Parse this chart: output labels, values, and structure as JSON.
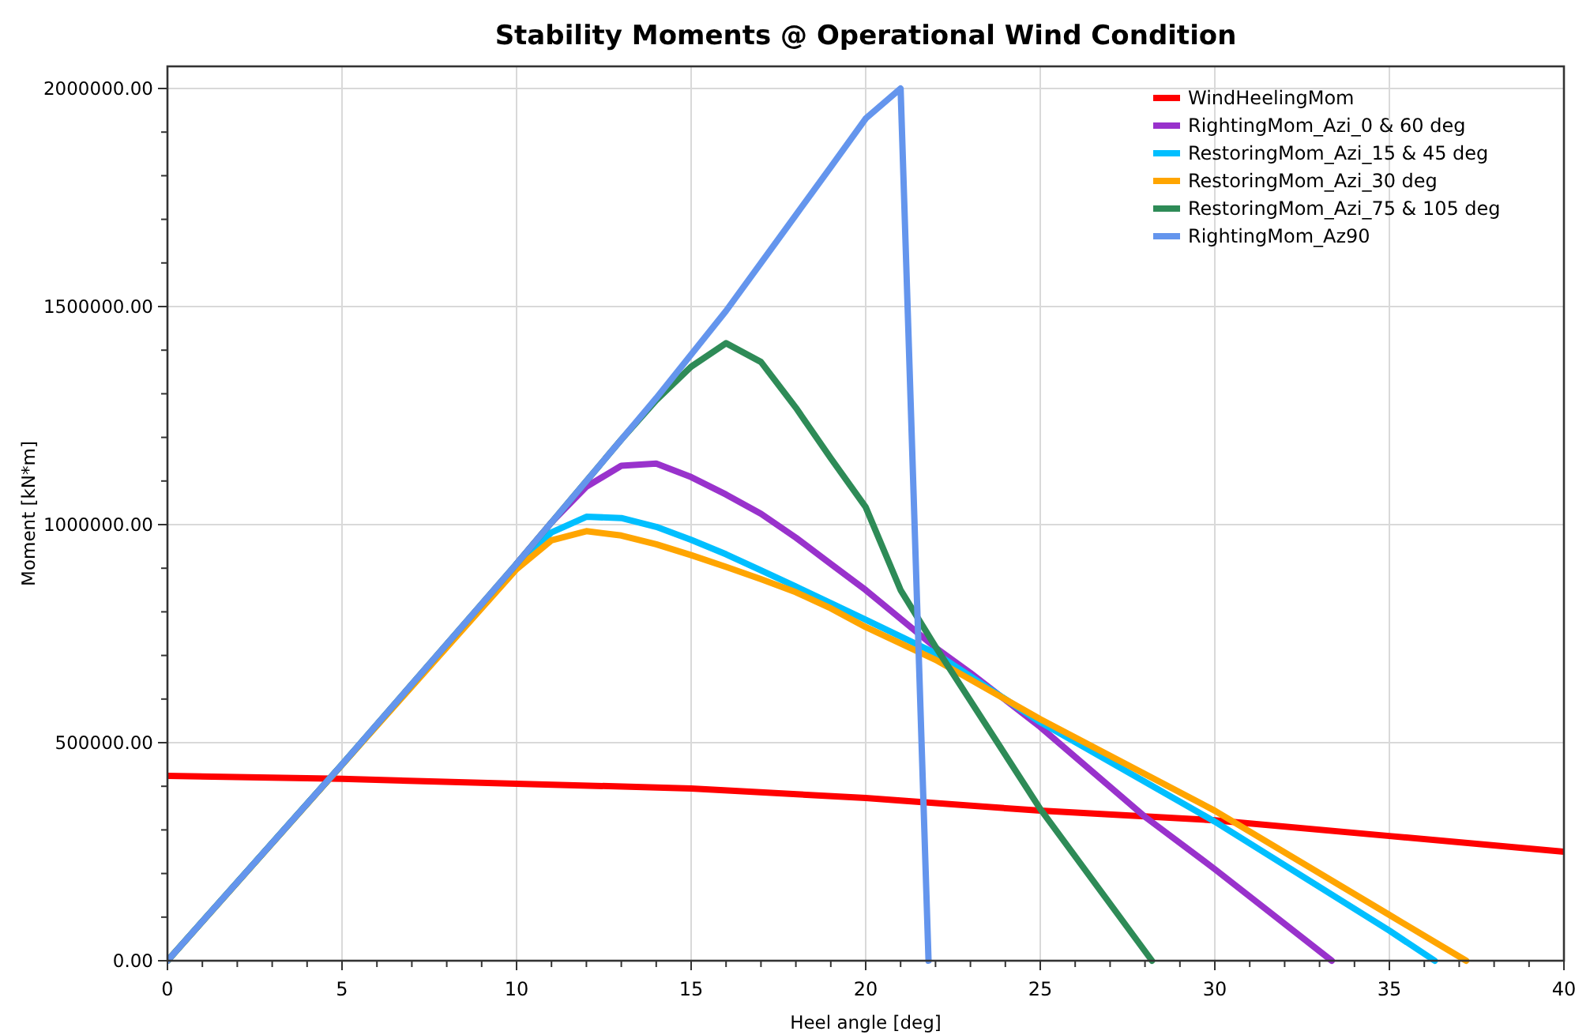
{
  "chart_data": {
    "type": "line",
    "title": "Stability Moments @ Operational Wind Condition",
    "xlabel": "Heel angle [deg]",
    "ylabel": "Moment [kN*m]",
    "xlim": [
      0,
      40
    ],
    "ylim": [
      0,
      2000000
    ],
    "xticks": [
      0,
      {
        "value": 1,
        "label": null
      },
      {
        "value": 2,
        "label": null
      },
      {
        "value": 3,
        "label": null
      },
      {
        "value": 4,
        "label": null
      },
      5,
      {
        "value": 6,
        "label": null
      },
      {
        "value": 7,
        "label": null
      },
      {
        "value": 8,
        "label": null
      },
      {
        "value": 9,
        "label": null
      },
      10,
      {
        "value": 11,
        "label": null
      },
      {
        "value": 12,
        "label": null
      },
      {
        "value": 13,
        "label": null
      },
      {
        "value": 14,
        "label": null
      },
      15,
      {
        "value": 16,
        "label": null
      },
      {
        "value": 17,
        "label": null
      },
      {
        "value": 18,
        "label": null
      },
      {
        "value": 19,
        "label": null
      },
      20,
      {
        "value": 21,
        "label": null
      },
      {
        "value": 22,
        "label": null
      },
      {
        "value": 23,
        "label": null
      },
      {
        "value": 24,
        "label": null
      },
      25,
      {
        "value": 26,
        "label": null
      },
      {
        "value": 27,
        "label": null
      },
      {
        "value": 28,
        "label": null
      },
      {
        "value": 29,
        "label": null
      },
      30,
      {
        "value": 31,
        "label": null
      },
      {
        "value": 32,
        "label": null
      },
      {
        "value": 33,
        "label": null
      },
      {
        "value": 34,
        "label": null
      },
      35,
      {
        "value": 36,
        "label": null
      },
      {
        "value": 37,
        "label": null
      },
      {
        "value": 38,
        "label": null
      },
      {
        "value": 39,
        "label": null
      },
      40
    ],
    "yticks": [
      {
        "value": 0,
        "label": "0.00"
      },
      {
        "value": 100000,
        "label": null
      },
      {
        "value": 200000,
        "label": null
      },
      {
        "value": 300000,
        "label": null
      },
      {
        "value": 400000,
        "label": null
      },
      {
        "value": 500000,
        "label": "500000.00"
      },
      {
        "value": 600000,
        "label": null
      },
      {
        "value": 700000,
        "label": null
      },
      {
        "value": 800000,
        "label": null
      },
      {
        "value": 900000,
        "label": null
      },
      {
        "value": 1000000,
        "label": "1000000.00"
      },
      {
        "value": 1100000,
        "label": null
      },
      {
        "value": 1200000,
        "label": null
      },
      {
        "value": 1300000,
        "label": null
      },
      {
        "value": 1400000,
        "label": null
      },
      {
        "value": 1500000,
        "label": "1500000.00"
      },
      {
        "value": 1600000,
        "label": null
      },
      {
        "value": 1700000,
        "label": null
      },
      {
        "value": 1800000,
        "label": null
      },
      {
        "value": 1900000,
        "label": null
      },
      {
        "value": 2000000,
        "label": "2000000.00"
      }
    ],
    "grid": true,
    "legend": "top right",
    "marker": "none",
    "line_style": "solid",
    "series": [
      {
        "name": "WindHeelingMom",
        "color": "#ff0000",
        "x": [
          0,
          5,
          10,
          15,
          20,
          25,
          30,
          35,
          40
        ],
        "values": [
          424000,
          417000,
          406000,
          395000,
          373000,
          344000,
          322000,
          286000,
          250000
        ]
      },
      {
        "name": "RightingMom_Azi_0 & 60 deg",
        "color": "#9932cc",
        "x": [
          10,
          11,
          12,
          13,
          14,
          15,
          16,
          17,
          18,
          19,
          20,
          22,
          23,
          25,
          28,
          30,
          33.35
        ],
        "values": [
          910000,
          1005000,
          1087000,
          1135000,
          1140000,
          1109000,
          1069000,
          1025000,
          970000,
          910000,
          850000,
          718000,
          660000,
          536000,
          330000,
          210000,
          0
        ]
      },
      {
        "name": "RestoringMom_Azi_15 & 45 deg",
        "color": "#00bfff",
        "x": [
          0,
          5,
          10,
          11,
          12,
          13,
          14,
          15,
          16,
          17,
          18,
          19,
          20,
          22,
          25,
          30,
          35,
          36.3
        ],
        "values": [
          0,
          450000,
          905000,
          982000,
          1018000,
          1015000,
          995000,
          965000,
          932000,
          895000,
          858000,
          820000,
          782000,
          705000,
          547000,
          319000,
          69000,
          0
        ]
      },
      {
        "name": "RestoringMom_Azi_30 deg",
        "color": "#ffa500",
        "x": [
          0,
          10,
          11,
          12,
          13,
          14,
          15,
          16,
          17,
          18,
          19,
          20,
          22,
          25,
          30,
          35,
          37.2
        ],
        "values": [
          0,
          898000,
          964000,
          985000,
          975000,
          955000,
          930000,
          903000,
          875000,
          845000,
          808000,
          765000,
          690000,
          554000,
          344000,
          105000,
          0
        ]
      },
      {
        "name": "RestoringMom_Azi_75 & 105 deg",
        "color": "#2e8b57",
        "x": [
          0,
          5,
          10,
          11,
          12,
          13,
          14,
          15,
          16,
          17,
          18,
          19,
          20,
          21,
          22,
          25,
          28.2
        ],
        "values": [
          0,
          450000,
          910000,
          1005000,
          1100000,
          1195000,
          1285000,
          1362000,
          1416000,
          1373000,
          1268000,
          1152000,
          1040000,
          850000,
          720000,
          348000,
          0
        ]
      },
      {
        "name": "RightingMom_Az90",
        "color": "#6495ed",
        "x": [
          0,
          5,
          10,
          11,
          12,
          13,
          14,
          15,
          16,
          17,
          18,
          19,
          20,
          21,
          21.8
        ],
        "values": [
          0,
          450000,
          910000,
          1005000,
          1100000,
          1195000,
          1290000,
          1390000,
          1490000,
          1600000,
          1710000,
          1820000,
          1931000,
          2000000,
          0
        ]
      }
    ]
  }
}
